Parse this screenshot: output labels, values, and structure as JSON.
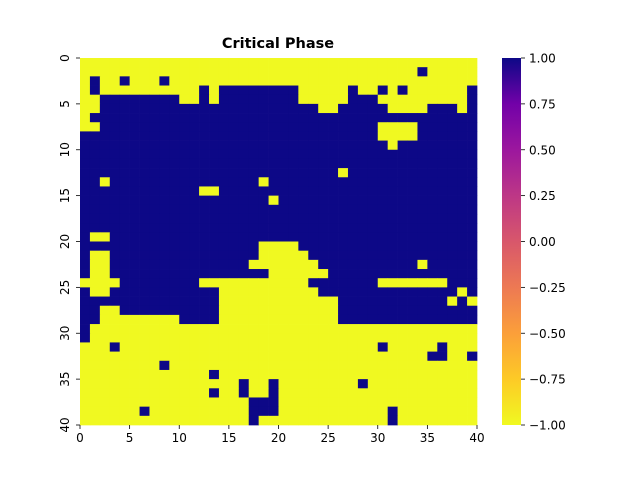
{
  "chart_data": {
    "type": "heatmap",
    "title": "Critical Phase",
    "xlabel": "",
    "ylabel": "",
    "x_ticks": [
      "0",
      "5",
      "10",
      "15",
      "20",
      "25",
      "30",
      "35",
      "40"
    ],
    "y_ticks": [
      "0",
      "5",
      "10",
      "15",
      "20",
      "25",
      "30",
      "35",
      "40"
    ],
    "colorbar": {
      "colormap": "plasma_r",
      "vmin": -1.0,
      "vmax": 1.0,
      "ticks": [
        "1.00",
        "0.75",
        "0.50",
        "0.25",
        "0.00",
        "−0.25",
        "−0.50",
        "−0.75",
        "−1.00"
      ],
      "low_color": "#f0f921",
      "high_color": "#0d0887"
    },
    "grid": false,
    "legend": "colorbar-right",
    "rows": 40,
    "cols": 40,
    "values_encoding": "each row string: '1' = +1 (dark blue), '0' = -1 (yellow)",
    "values": [
      "0000000000000000000000000000000000000000",
      "0000000000000000000000000000000000100000",
      "0100100010000000000000000000000000000000",
      "0100000000001011111111000001001010000001",
      "0011111111001011111111000001110000000001",
      "0011111111111111111111110011111000011101",
      "0111111111111111111111111111111111111111",
      "0011111111111111111111111111110000111111",
      "1111111111111111111111111111110000111111",
      "1111111111111111111111111111111011111111",
      "1111111111111111111111111111111111111111",
      "1111111111111111111111111111111111111111",
      "1111111111111111111111111101111111111111",
      "1101111111111111110111111111111111111111",
      "1111111111110011111111111111111111111111",
      "1111111111111111111011111111111111111111",
      "1111111111111111111111111111111111111111",
      "1111111111111111111111111111111111111111",
      "1111111111111111111111111111111111111111",
      "1001111111111111111111111111111111111111",
      "1111111111111111110000111111111111111111",
      "1001111111111111110000011111111111111111",
      "1001111111111111100000001111111111011111",
      "1001111111111111111000000111111111111111",
      "0000111111110000000000011111110000000111",
      "1001111111111100000000001111111111111101",
      "1111111111111100000000000011111111111010",
      "1100111111111100000000000011111111111111",
      "1100000000111100000000000011111111111111",
      "1000000000000000000000000000000000000000",
      "1000000000000000000000000000000000000000",
      "0001000000000000000000000000001000001000",
      "0000000000000000000000000000000000011001",
      "0000000010000000000000000000000000000000",
      "0000000000000100000000000000000000000000",
      "0000000000000000100100000000100000000000",
      "0000000000000100100100000000000000000000",
      "0000000000000000011100000000000000000000",
      "0000001000000000011100000000000100000000",
      "0000000000000000010000000000000100000000"
    ]
  }
}
